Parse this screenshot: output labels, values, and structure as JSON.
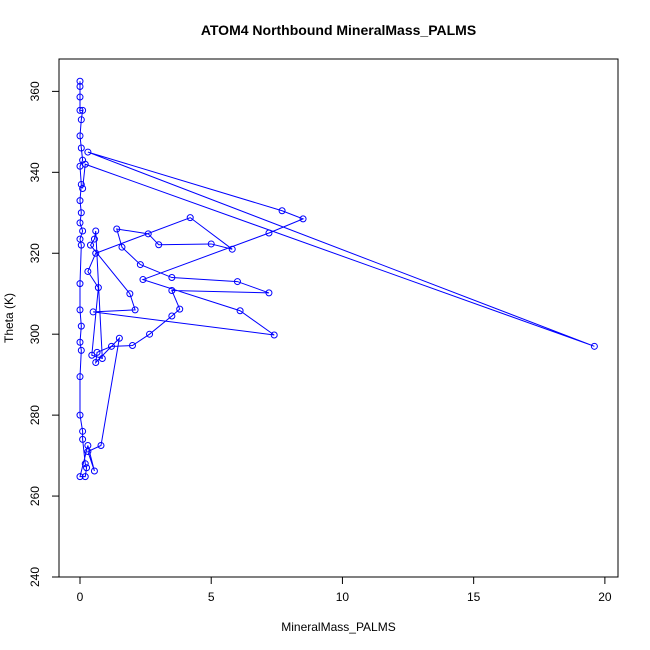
{
  "chart_data": {
    "type": "scatter",
    "title": "ATOM4 Northbound MineralMass_PALMS",
    "xlabel": "MineralMass_PALMS",
    "ylabel": "Theta (K)",
    "xlim": [
      -0.8,
      20.5
    ],
    "ylim": [
      240,
      368
    ],
    "xticks": [
      0,
      5,
      10,
      15,
      20
    ],
    "yticks": [
      240,
      260,
      280,
      300,
      320,
      340,
      360
    ],
    "grid": false,
    "series": [
      {
        "color": "#0000ff",
        "connected": true,
        "points": [
          [
            0.0,
            362.5
          ],
          [
            0.0,
            361.2
          ],
          [
            0.0,
            358.6
          ],
          [
            0.0,
            355.3
          ],
          [
            0.1,
            355.3
          ],
          [
            0.05,
            353.0
          ],
          [
            0.0,
            349.0
          ],
          [
            0.05,
            346.0
          ],
          [
            0.1,
            343.0
          ],
          [
            0.0,
            341.5
          ],
          [
            0.05,
            337.0
          ],
          [
            0.0,
            333.0
          ],
          [
            0.05,
            330.0
          ],
          [
            0.0,
            327.5
          ],
          [
            0.1,
            325.5
          ],
          [
            0.0,
            323.5
          ],
          [
            0.05,
            322.0
          ],
          [
            0.0,
            312.5
          ],
          [
            0.0,
            306.0
          ],
          [
            0.05,
            302.0
          ],
          [
            0.0,
            298.0
          ],
          [
            0.05,
            296.0
          ],
          [
            0.0,
            289.5
          ],
          [
            0.0,
            280.0
          ],
          [
            0.1,
            276.0
          ],
          [
            0.1,
            274.0
          ],
          [
            0.2,
            268.0
          ],
          [
            0.25,
            267.0
          ],
          [
            0.2,
            264.8
          ],
          [
            0.0,
            264.8
          ],
          [
            0.3,
            272.5
          ],
          [
            0.55,
            266.2
          ],
          [
            0.3,
            271.0
          ],
          [
            0.8,
            272.5
          ],
          [
            1.5,
            299.0
          ],
          [
            0.6,
            293.0
          ],
          [
            0.65,
            295.5
          ],
          [
            1.2,
            297.0
          ],
          [
            2.0,
            297.2
          ],
          [
            2.65,
            300.0
          ],
          [
            3.5,
            304.5
          ],
          [
            3.8,
            306.2
          ],
          [
            3.5,
            310.8
          ],
          [
            7.2,
            310.2
          ],
          [
            6.0,
            313.0
          ],
          [
            3.5,
            314.0
          ],
          [
            2.3,
            317.2
          ],
          [
            1.6,
            321.5
          ],
          [
            1.4,
            326.0
          ],
          [
            2.6,
            324.8
          ],
          [
            3.0,
            322.1
          ],
          [
            5.0,
            322.3
          ],
          [
            5.8,
            321.0
          ],
          [
            4.2,
            328.8
          ],
          [
            0.6,
            320.0
          ],
          [
            0.3,
            315.5
          ],
          [
            0.7,
            311.5
          ],
          [
            0.45,
            294.8
          ],
          [
            0.85,
            294.0
          ],
          [
            0.6,
            325.5
          ],
          [
            0.55,
            323.5
          ],
          [
            0.4,
            322.0
          ],
          [
            1.9,
            310.0
          ],
          [
            2.1,
            306.0
          ],
          [
            0.5,
            305.5
          ],
          [
            7.4,
            299.8
          ],
          [
            6.1,
            305.8
          ],
          [
            2.4,
            313.5
          ],
          [
            7.2,
            325.0
          ],
          [
            8.5,
            328.5
          ],
          [
            7.7,
            330.5
          ],
          [
            0.3,
            345.0
          ],
          [
            19.6,
            297.0
          ],
          [
            0.2,
            342.0
          ],
          [
            0.1,
            336.0
          ]
        ]
      }
    ]
  }
}
